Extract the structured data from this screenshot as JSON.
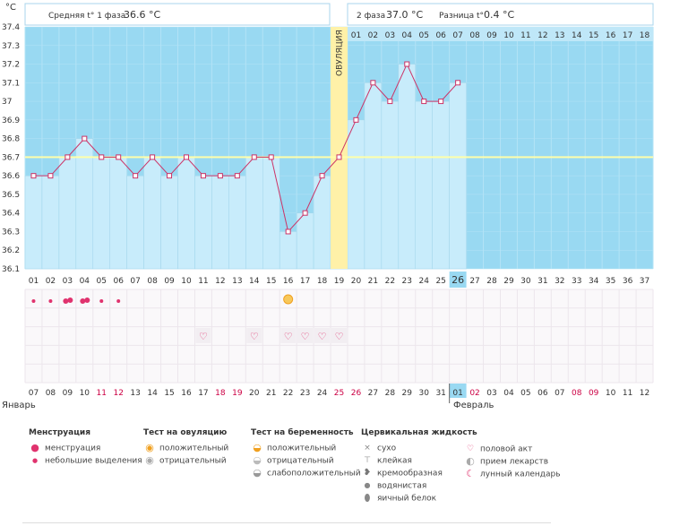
{
  "chart_data": {
    "type": "line",
    "unit_label": "°C",
    "ylim": [
      36.1,
      37.4
    ],
    "yticks": [
      "37.4",
      "37.3",
      "37.2",
      "37.1",
      "37",
      "36.9",
      "36.8",
      "36.7",
      "36.6",
      "36.5",
      "36.4",
      "36.3",
      "36.2",
      "36.1"
    ],
    "days": [
      "01",
      "02",
      "03",
      "04",
      "05",
      "06",
      "07",
      "08",
      "09",
      "10",
      "11",
      "12",
      "13",
      "14",
      "15",
      "16",
      "17",
      "18",
      "19",
      "20",
      "21",
      "22",
      "23",
      "24",
      "25",
      "26",
      "27",
      "28",
      "29",
      "30",
      "31",
      "32",
      "33",
      "34",
      "35",
      "36",
      "37"
    ],
    "temps": [
      36.6,
      36.6,
      36.7,
      36.8,
      36.7,
      36.7,
      36.6,
      36.7,
      36.6,
      36.7,
      36.6,
      36.6,
      36.6,
      36.7,
      36.7,
      36.3,
      36.4,
      36.6,
      36.7,
      36.9,
      37.1,
      37.0,
      37.2,
      37.0,
      37.0,
      37.1
    ],
    "coverline": 36.7,
    "ovulation_day": 19,
    "ovulation_label": "ОВУЛЯЦИЯ",
    "current_day": "26",
    "phase2_days": [
      "01",
      "02",
      "03",
      "04",
      "05",
      "06",
      "07",
      "08",
      "09",
      "10",
      "11",
      "12",
      "13",
      "14",
      "15",
      "16",
      "17",
      "18"
    ],
    "header": {
      "phase1_label": "Средняя t° 1 фаза",
      "phase1_value": "36.6 °C",
      "phase2_label": "2 фаза",
      "phase2_value": "37.0 °C",
      "diff_label": "Разница t°",
      "diff_value": "0.4 °C"
    },
    "dates": [
      "07",
      "08",
      "09",
      "10",
      "11",
      "12",
      "13",
      "14",
      "15",
      "16",
      "17",
      "18",
      "19",
      "20",
      "21",
      "22",
      "23",
      "24",
      "25",
      "26",
      "27",
      "28",
      "29",
      "30",
      "31",
      "01",
      "02",
      "03",
      "04",
      "05",
      "06",
      "07",
      "08",
      "09",
      "10",
      "11",
      "12"
    ],
    "date_colors": [
      "#333333",
      "#333333",
      "#333333",
      "#333333",
      "#cc0044",
      "#cc0044",
      "#333333",
      "#333333",
      "#333333",
      "#333333",
      "#333333",
      "#cc0044",
      "#cc0044",
      "#333333",
      "#333333",
      "#333333",
      "#333333",
      "#333333",
      "#cc0044",
      "#cc0044",
      "#333333",
      "#333333",
      "#333333",
      "#333333",
      "#333333",
      "#333333",
      "#cc0044",
      "#333333",
      "#333333",
      "#333333",
      "#333333",
      "#333333",
      "#cc0044",
      "#cc0044",
      "#333333",
      "#333333",
      "#333333"
    ],
    "menstruation": [
      {
        "day": 1,
        "icon": "small"
      },
      {
        "day": 2,
        "icon": "small"
      },
      {
        "day": 3,
        "icon": "large"
      },
      {
        "day": 4,
        "icon": "large"
      },
      {
        "day": 5,
        "icon": "small"
      },
      {
        "day": 6,
        "icon": "small"
      }
    ],
    "ovulation_test_positive_day": 16,
    "intercourse_days": [
      11,
      14,
      16,
      17,
      18,
      19
    ],
    "months": {
      "left": "Январь",
      "right": "Февраль"
    }
  },
  "legend": {
    "menstruation": {
      "title": "Менструация",
      "items": [
        "менструация",
        "небольшие выделения"
      ]
    },
    "ovulation_test": {
      "title": "Тест на овуляцию",
      "items": [
        "положительный",
        "отрицательный"
      ]
    },
    "pregnancy_test": {
      "title": "Тест на беременность",
      "items": [
        "положительный",
        "отрицательный",
        "слабоположительный"
      ]
    },
    "cervical": {
      "title": "Цервикальная жидкость",
      "items": [
        "сухо",
        "клейкая",
        "кремообразная",
        "водянистая",
        "яичный белок"
      ]
    },
    "other": {
      "items": [
        "половой акт",
        "прием лекарств",
        "лунный календарь"
      ]
    }
  },
  "colors": {
    "bg_blue": "#99d9f2",
    "bar_fill": "#c8ecfb",
    "line": "#cc3366",
    "coverline": "#ffffaa",
    "ovulation": "#fff1a8",
    "today": "#99d9f2"
  }
}
